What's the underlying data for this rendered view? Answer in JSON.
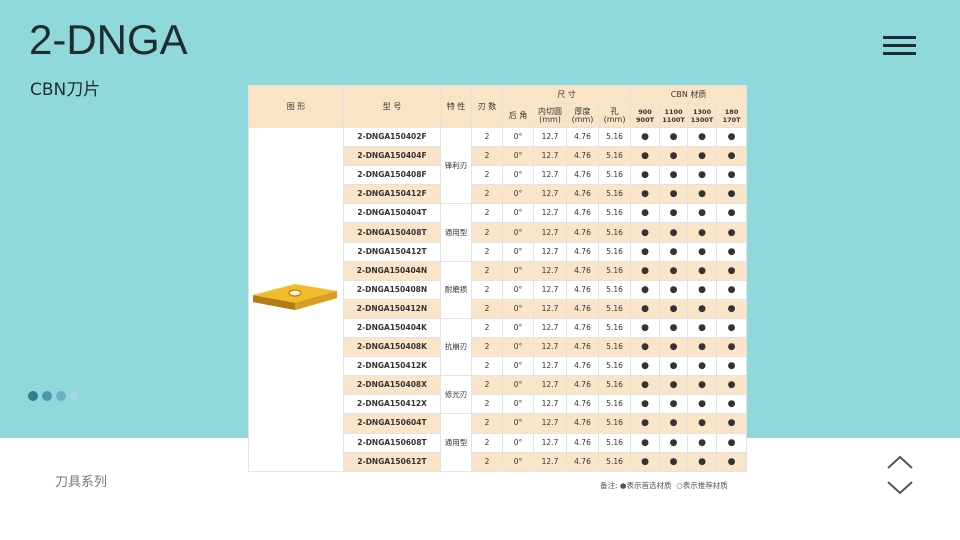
{
  "header": {
    "title": "2-DNGA",
    "subtitle": "CBN刀片"
  },
  "footer": {
    "label": "刀具系列"
  },
  "table": {
    "headers": {
      "shape": "图  形",
      "model": "型  号",
      "feature": "特 性",
      "edges": "刃 数",
      "size": "尺  寸",
      "relief": "后 角",
      "ic": "内切圆\n(mm)",
      "thickness": "厚度\n(mm)",
      "hole": "孔\n(mm)",
      "cbn": "CBN 材质",
      "grades": [
        "900\n900T",
        "1100\n1100T",
        "1300\n1300T",
        "180\n170T"
      ]
    },
    "groups": [
      {
        "feature": "锋利刃",
        "rows": [
          [
            "2-DNGA150402F",
            "2",
            "0°",
            "12.7",
            "4.76",
            "5.16",
            "●",
            "●",
            "●",
            "●"
          ],
          [
            "2-DNGA150404F",
            "2",
            "0°",
            "12.7",
            "4.76",
            "5.16",
            "●",
            "●",
            "●",
            "●"
          ],
          [
            "2-DNGA150408F",
            "2",
            "0°",
            "12.7",
            "4.76",
            "5.16",
            "●",
            "●",
            "●",
            "●"
          ],
          [
            "2-DNGA150412F",
            "2",
            "0°",
            "12.7",
            "4.76",
            "5.16",
            "●",
            "●",
            "●",
            "●"
          ]
        ]
      },
      {
        "feature": "通用型",
        "rows": [
          [
            "2-DNGA150404T",
            "2",
            "0°",
            "12.7",
            "4.76",
            "5.16",
            "●",
            "●",
            "●",
            "●"
          ],
          [
            "2-DNGA150408T",
            "2",
            "0°",
            "12.7",
            "4.76",
            "5.16",
            "●",
            "●",
            "●",
            "●"
          ],
          [
            "2-DNGA150412T",
            "2",
            "0°",
            "12.7",
            "4.76",
            "5.16",
            "●",
            "●",
            "●",
            "●"
          ]
        ]
      },
      {
        "feature": "耐磨损",
        "rows": [
          [
            "2-DNGA150404N",
            "2",
            "0°",
            "12.7",
            "4.76",
            "5.16",
            "●",
            "●",
            "●",
            "●"
          ],
          [
            "2-DNGA150408N",
            "2",
            "0°",
            "12.7",
            "4.76",
            "5.16",
            "●",
            "●",
            "●",
            "●"
          ],
          [
            "2-DNGA150412N",
            "2",
            "0°",
            "12.7",
            "4.76",
            "5.16",
            "●",
            "●",
            "●",
            "●"
          ]
        ]
      },
      {
        "feature": "抗崩刃",
        "rows": [
          [
            "2-DNGA150404K",
            "2",
            "0°",
            "12.7",
            "4.76",
            "5.16",
            "●",
            "●",
            "●",
            "●"
          ],
          [
            "2-DNGA150408K",
            "2",
            "0°",
            "12.7",
            "4.76",
            "5.16",
            "●",
            "●",
            "●",
            "●"
          ],
          [
            "2-DNGA150412K",
            "2",
            "0°",
            "12.7",
            "4.76",
            "5.16",
            "●",
            "●",
            "●",
            "●"
          ]
        ]
      },
      {
        "feature": "修光刃",
        "rows": [
          [
            "2-DNGA150408X",
            "2",
            "0°",
            "12.7",
            "4.76",
            "5.16",
            "●",
            "●",
            "●",
            "●"
          ],
          [
            "2-DNGA150412X",
            "2",
            "0°",
            "12.7",
            "4.76",
            "5.16",
            "●",
            "●",
            "●",
            "●"
          ]
        ]
      },
      {
        "feature": "通用型",
        "rows": [
          [
            "2-DNGA150604T",
            "2",
            "0°",
            "12.7",
            "4.76",
            "5.16",
            "●",
            "●",
            "●",
            "●"
          ],
          [
            "2-DNGA150608T",
            "2",
            "0°",
            "12.7",
            "4.76",
            "5.16",
            "●",
            "●",
            "●",
            "●"
          ],
          [
            "2-DNGA150612T",
            "2",
            "0°",
            "12.7",
            "4.76",
            "5.16",
            "●",
            "●",
            "●",
            "●"
          ]
        ]
      }
    ],
    "note": "备注: ●表示首选材质  ○表示推荐材质"
  }
}
